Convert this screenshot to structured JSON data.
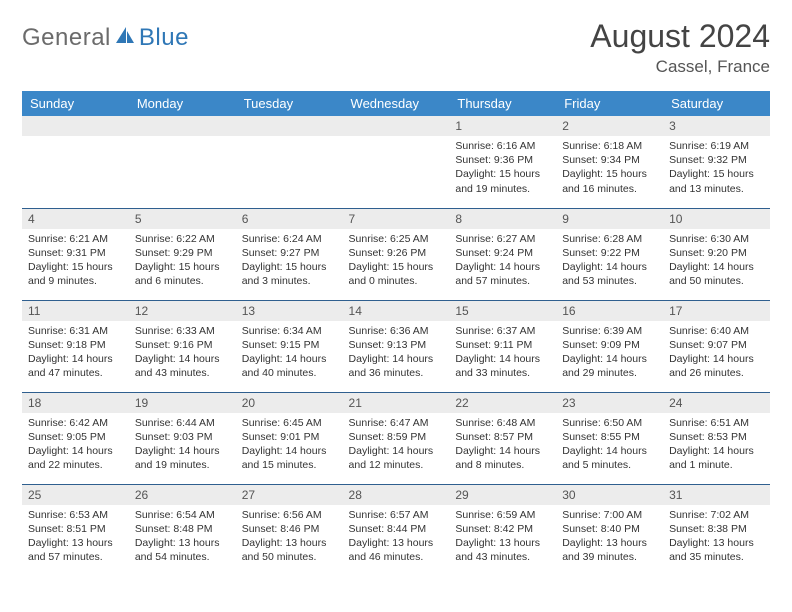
{
  "brand": {
    "part1": "General",
    "part2": "Blue"
  },
  "title": "August 2024",
  "location": "Cassel, France",
  "colors": {
    "header_bg": "#3b87c8",
    "header_text": "#ffffff",
    "daynum_bg": "#ececec",
    "row_divider": "#2f5f8f",
    "logo_gray": "#6b6b6b",
    "logo_blue": "#2f77b6"
  },
  "weekdays": [
    "Sunday",
    "Monday",
    "Tuesday",
    "Wednesday",
    "Thursday",
    "Friday",
    "Saturday"
  ],
  "weeks": [
    [
      null,
      null,
      null,
      null,
      {
        "n": "1",
        "sr": "6:16 AM",
        "ss": "9:36 PM",
        "dl": "15 hours and 19 minutes."
      },
      {
        "n": "2",
        "sr": "6:18 AM",
        "ss": "9:34 PM",
        "dl": "15 hours and 16 minutes."
      },
      {
        "n": "3",
        "sr": "6:19 AM",
        "ss": "9:32 PM",
        "dl": "15 hours and 13 minutes."
      }
    ],
    [
      {
        "n": "4",
        "sr": "6:21 AM",
        "ss": "9:31 PM",
        "dl": "15 hours and 9 minutes."
      },
      {
        "n": "5",
        "sr": "6:22 AM",
        "ss": "9:29 PM",
        "dl": "15 hours and 6 minutes."
      },
      {
        "n": "6",
        "sr": "6:24 AM",
        "ss": "9:27 PM",
        "dl": "15 hours and 3 minutes."
      },
      {
        "n": "7",
        "sr": "6:25 AM",
        "ss": "9:26 PM",
        "dl": "15 hours and 0 minutes."
      },
      {
        "n": "8",
        "sr": "6:27 AM",
        "ss": "9:24 PM",
        "dl": "14 hours and 57 minutes."
      },
      {
        "n": "9",
        "sr": "6:28 AM",
        "ss": "9:22 PM",
        "dl": "14 hours and 53 minutes."
      },
      {
        "n": "10",
        "sr": "6:30 AM",
        "ss": "9:20 PM",
        "dl": "14 hours and 50 minutes."
      }
    ],
    [
      {
        "n": "11",
        "sr": "6:31 AM",
        "ss": "9:18 PM",
        "dl": "14 hours and 47 minutes."
      },
      {
        "n": "12",
        "sr": "6:33 AM",
        "ss": "9:16 PM",
        "dl": "14 hours and 43 minutes."
      },
      {
        "n": "13",
        "sr": "6:34 AM",
        "ss": "9:15 PM",
        "dl": "14 hours and 40 minutes."
      },
      {
        "n": "14",
        "sr": "6:36 AM",
        "ss": "9:13 PM",
        "dl": "14 hours and 36 minutes."
      },
      {
        "n": "15",
        "sr": "6:37 AM",
        "ss": "9:11 PM",
        "dl": "14 hours and 33 minutes."
      },
      {
        "n": "16",
        "sr": "6:39 AM",
        "ss": "9:09 PM",
        "dl": "14 hours and 29 minutes."
      },
      {
        "n": "17",
        "sr": "6:40 AM",
        "ss": "9:07 PM",
        "dl": "14 hours and 26 minutes."
      }
    ],
    [
      {
        "n": "18",
        "sr": "6:42 AM",
        "ss": "9:05 PM",
        "dl": "14 hours and 22 minutes."
      },
      {
        "n": "19",
        "sr": "6:44 AM",
        "ss": "9:03 PM",
        "dl": "14 hours and 19 minutes."
      },
      {
        "n": "20",
        "sr": "6:45 AM",
        "ss": "9:01 PM",
        "dl": "14 hours and 15 minutes."
      },
      {
        "n": "21",
        "sr": "6:47 AM",
        "ss": "8:59 PM",
        "dl": "14 hours and 12 minutes."
      },
      {
        "n": "22",
        "sr": "6:48 AM",
        "ss": "8:57 PM",
        "dl": "14 hours and 8 minutes."
      },
      {
        "n": "23",
        "sr": "6:50 AM",
        "ss": "8:55 PM",
        "dl": "14 hours and 5 minutes."
      },
      {
        "n": "24",
        "sr": "6:51 AM",
        "ss": "8:53 PM",
        "dl": "14 hours and 1 minute."
      }
    ],
    [
      {
        "n": "25",
        "sr": "6:53 AM",
        "ss": "8:51 PM",
        "dl": "13 hours and 57 minutes."
      },
      {
        "n": "26",
        "sr": "6:54 AM",
        "ss": "8:48 PM",
        "dl": "13 hours and 54 minutes."
      },
      {
        "n": "27",
        "sr": "6:56 AM",
        "ss": "8:46 PM",
        "dl": "13 hours and 50 minutes."
      },
      {
        "n": "28",
        "sr": "6:57 AM",
        "ss": "8:44 PM",
        "dl": "13 hours and 46 minutes."
      },
      {
        "n": "29",
        "sr": "6:59 AM",
        "ss": "8:42 PM",
        "dl": "13 hours and 43 minutes."
      },
      {
        "n": "30",
        "sr": "7:00 AM",
        "ss": "8:40 PM",
        "dl": "13 hours and 39 minutes."
      },
      {
        "n": "31",
        "sr": "7:02 AM",
        "ss": "8:38 PM",
        "dl": "13 hours and 35 minutes."
      }
    ]
  ],
  "labels": {
    "sunrise": "Sunrise: ",
    "sunset": "Sunset: ",
    "daylight": "Daylight: "
  }
}
